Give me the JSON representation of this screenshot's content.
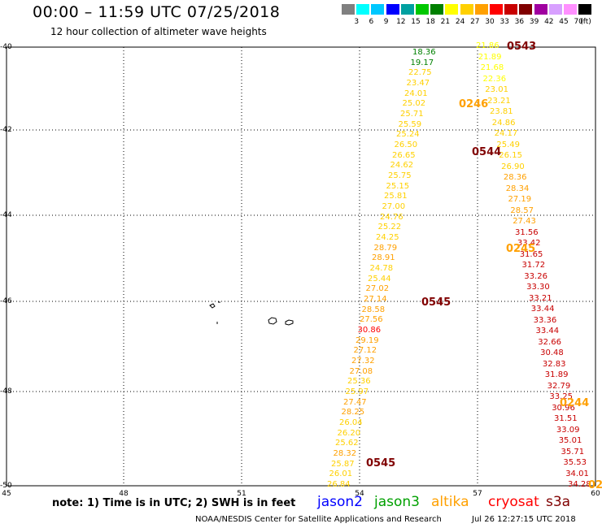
{
  "header": {
    "title": "00:00 – 11:59 UTC 07/25/2018",
    "subtitle": "12 hour collection of altimeter wave heights"
  },
  "colorbar": {
    "colors": [
      "#808080",
      "#00ffff",
      "#00c8ff",
      "#0000ff",
      "#00a0a0",
      "#00c800",
      "#008000",
      "#ffff00",
      "#ffd000",
      "#ffa000",
      "#ff0000",
      "#c80000",
      "#800000",
      "#a000a0",
      "#d8a0ff",
      "#ff90ff",
      "#000000"
    ],
    "labels": [
      "3",
      "6",
      "9",
      "12",
      "15",
      "18",
      "21",
      "24",
      "27",
      "30",
      "33",
      "36",
      "39",
      "42",
      "45",
      "70"
    ],
    "unit": "(ft)"
  },
  "axes": {
    "lat_labels": [
      "-40",
      "-42",
      "-44",
      "-46",
      "-48",
      "-50"
    ],
    "lon_labels": [
      "45",
      "48",
      "51",
      "54",
      "57",
      "60"
    ]
  },
  "tracks": [
    {
      "name": "track-a",
      "points": [
        {
          "v": "18.36",
          "c": "#008000"
        },
        {
          "v": "19.17",
          "c": "#008000"
        },
        {
          "v": "22.75",
          "c": "#ffd000"
        },
        {
          "v": "23.47",
          "c": "#ffd000"
        },
        {
          "v": "24.01",
          "c": "#ffd000"
        },
        {
          "v": "25.02",
          "c": "#ffd000"
        },
        {
          "v": "25.71",
          "c": "#ffd000"
        },
        {
          "v": "25.59",
          "c": "#ffd000"
        },
        {
          "v": "25.24",
          "c": "#ffd000"
        },
        {
          "v": "26.50",
          "c": "#ffd000"
        },
        {
          "v": "26.65",
          "c": "#ffd000"
        },
        {
          "v": "24.62",
          "c": "#ffd000"
        },
        {
          "v": "25.75",
          "c": "#ffd000"
        },
        {
          "v": "25.15",
          "c": "#ffd000"
        },
        {
          "v": "25.81",
          "c": "#ffd000"
        },
        {
          "v": "27.00",
          "c": "#ffd000"
        },
        {
          "v": "24.76",
          "c": "#ffd000"
        },
        {
          "v": "25.22",
          "c": "#ffd000"
        },
        {
          "v": "24.25",
          "c": "#ffd000"
        },
        {
          "v": "28.79",
          "c": "#ffa000"
        },
        {
          "v": "28.91",
          "c": "#ffa000"
        },
        {
          "v": "24.78",
          "c": "#ffd000"
        },
        {
          "v": "25.44",
          "c": "#ffd000"
        },
        {
          "v": "27.02",
          "c": "#ffa000"
        },
        {
          "v": "27.14",
          "c": "#ffa000"
        },
        {
          "v": "28.58",
          "c": "#ffa000"
        },
        {
          "v": "27.56",
          "c": "#ffa000"
        },
        {
          "v": "30.86",
          "c": "#ff0000"
        },
        {
          "v": "29.19",
          "c": "#ffa000"
        },
        {
          "v": "27.12",
          "c": "#ffa000"
        },
        {
          "v": "27.32",
          "c": "#ffa000"
        },
        {
          "v": "27.08",
          "c": "#ffa000"
        },
        {
          "v": "25.36",
          "c": "#ffd000"
        },
        {
          "v": "25.97",
          "c": "#ffd000"
        },
        {
          "v": "27.47",
          "c": "#ffa000"
        },
        {
          "v": "28.25",
          "c": "#ffa000"
        },
        {
          "v": "26.04",
          "c": "#ffd000"
        },
        {
          "v": "26.20",
          "c": "#ffd000"
        },
        {
          "v": "25.62",
          "c": "#ffd000"
        },
        {
          "v": "28.32",
          "c": "#ffa000"
        },
        {
          "v": "25.87",
          "c": "#ffd000"
        },
        {
          "v": "26.01",
          "c": "#ffd000"
        },
        {
          "v": "26.84",
          "c": "#ffd000"
        }
      ]
    },
    {
      "name": "track-b",
      "points": [
        {
          "v": "21.86",
          "c": "#ffff00"
        },
        {
          "v": "21.89",
          "c": "#ffff00"
        },
        {
          "v": "21.68",
          "c": "#ffff00"
        },
        {
          "v": "22.36",
          "c": "#ffff00"
        },
        {
          "v": "23.01",
          "c": "#ffd000"
        },
        {
          "v": "23.21",
          "c": "#ffd000"
        },
        {
          "v": "23.81",
          "c": "#ffd000"
        },
        {
          "v": "24.86",
          "c": "#ffd000"
        },
        {
          "v": "24.17",
          "c": "#ffd000"
        },
        {
          "v": "25.49",
          "c": "#ffd000"
        },
        {
          "v": "26.15",
          "c": "#ffd000"
        },
        {
          "v": "26.90",
          "c": "#ffd000"
        },
        {
          "v": "28.36",
          "c": "#ffa000"
        },
        {
          "v": "28.34",
          "c": "#ffa000"
        },
        {
          "v": "27.19",
          "c": "#ffa000"
        },
        {
          "v": "28.57",
          "c": "#ffa000"
        },
        {
          "v": "27.43",
          "c": "#ffa000"
        },
        {
          "v": "31.56",
          "c": "#c80000"
        },
        {
          "v": "33.42",
          "c": "#c80000"
        },
        {
          "v": "31.65",
          "c": "#c80000"
        },
        {
          "v": "31.72",
          "c": "#c80000"
        },
        {
          "v": "33.26",
          "c": "#c80000"
        },
        {
          "v": "33.30",
          "c": "#c80000"
        },
        {
          "v": "33.21",
          "c": "#c80000"
        },
        {
          "v": "33.44",
          "c": "#c80000"
        },
        {
          "v": "33.36",
          "c": "#c80000"
        },
        {
          "v": "33.44",
          "c": "#c80000"
        },
        {
          "v": "32.66",
          "c": "#c80000"
        },
        {
          "v": "30.48",
          "c": "#c80000"
        },
        {
          "v": "32.83",
          "c": "#c80000"
        },
        {
          "v": "31.89",
          "c": "#c80000"
        },
        {
          "v": "32.79",
          "c": "#c80000"
        },
        {
          "v": "33.25",
          "c": "#c80000"
        },
        {
          "v": "30.96",
          "c": "#c80000"
        },
        {
          "v": "31.51",
          "c": "#c80000"
        },
        {
          "v": "33.09",
          "c": "#c80000"
        },
        {
          "v": "35.01",
          "c": "#c80000"
        },
        {
          "v": "35.71",
          "c": "#c80000"
        },
        {
          "v": "35.53",
          "c": "#c80000"
        },
        {
          "v": "34.01",
          "c": "#c80000"
        },
        {
          "v": "34.28",
          "c": "#c80000"
        }
      ]
    }
  ],
  "time_labels": [
    {
      "text": "0543",
      "c": "#800000"
    },
    {
      "text": "0246",
      "c": "#ffa000"
    },
    {
      "text": "0544",
      "c": "#800000"
    },
    {
      "text": "0245",
      "c": "#ffa000"
    },
    {
      "text": "0545",
      "c": "#800000"
    },
    {
      "text": "0244",
      "c": "#ffa000"
    },
    {
      "text": "0545",
      "c": "#800000"
    },
    {
      "text": "02",
      "c": "#ffa000"
    }
  ],
  "legend": {
    "note": "note: 1) Time is in UTC; 2) SWH is in feet",
    "satellites": [
      {
        "name": "jason2",
        "color": "#0000ff"
      },
      {
        "name": "jason3",
        "color": "#00a000"
      },
      {
        "name": "altika",
        "color": "#ffa000"
      },
      {
        "name": "cryosat",
        "color": "#ff0000"
      },
      {
        "name": "s3a",
        "color": "#800000"
      }
    ]
  },
  "footer": {
    "credit": "NOAA/NESDIS Center for Satellite Applications and Research",
    "timestamp": "Jul 26 12:27:15 UTC 2018"
  }
}
